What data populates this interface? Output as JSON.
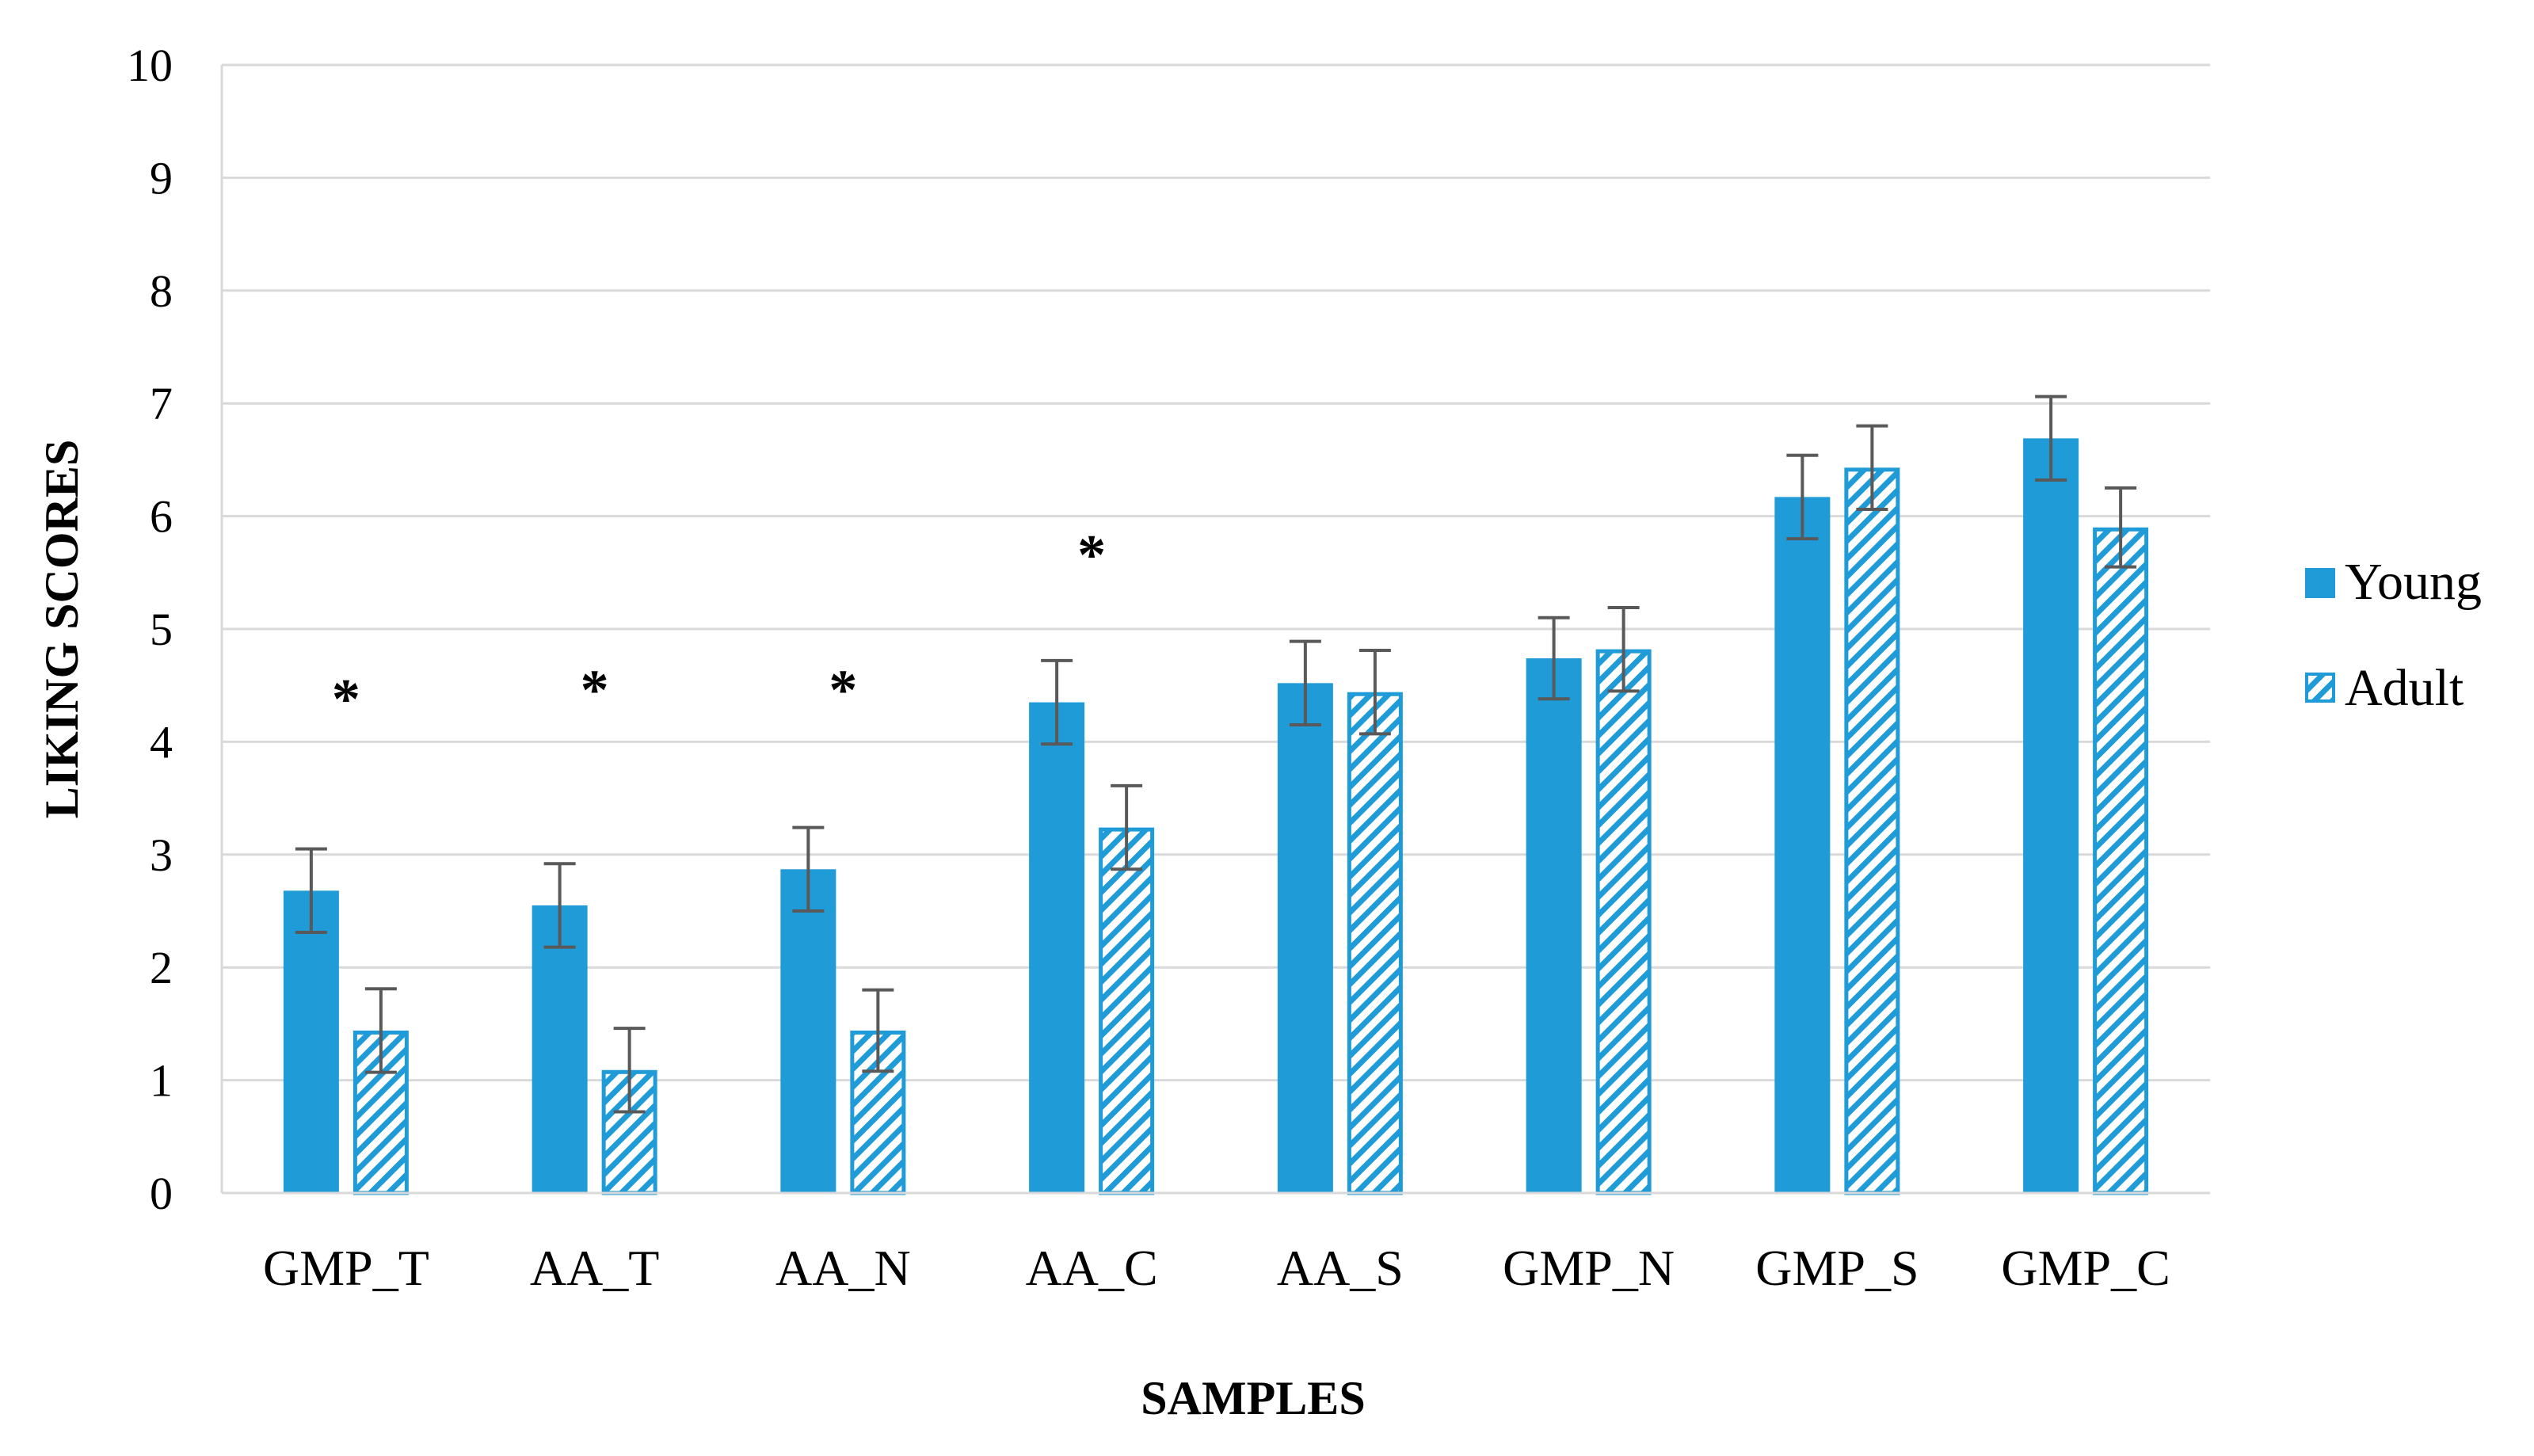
{
  "chart_data": {
    "type": "bar",
    "title": "",
    "xlabel": "SAMPLES",
    "ylabel": "LIKING SCORES",
    "ylim": [
      0,
      10
    ],
    "yticks": [
      0,
      1,
      2,
      3,
      4,
      5,
      6,
      7,
      8,
      9,
      10
    ],
    "grid": true,
    "legend_position": "right",
    "categories": [
      "GMP_T",
      "AA_T",
      "AA_N",
      "AA_C",
      "AA_S",
      "GMP_N",
      "GMP_S",
      "GMP_C"
    ],
    "series": [
      {
        "name": "Young",
        "color": "#1F9BD7",
        "pattern": "solid",
        "values": [
          2.68,
          2.55,
          2.87,
          4.35,
          4.52,
          4.74,
          6.17,
          6.69
        ],
        "errors": [
          0.37,
          0.37,
          0.37,
          0.37,
          0.37,
          0.36,
          0.37,
          0.37
        ]
      },
      {
        "name": "Adult",
        "color": "#1F9BD7",
        "pattern": "hatched",
        "values": [
          1.44,
          1.09,
          1.44,
          3.24,
          4.44,
          4.82,
          6.43,
          5.9
        ],
        "errors": [
          0.37,
          0.37,
          0.36,
          0.37,
          0.37,
          0.37,
          0.37,
          0.35
        ]
      }
    ],
    "significance_marker": "*",
    "significance_markers": [
      {
        "category": "GMP_T",
        "label": "*",
        "y": 4.42
      },
      {
        "category": "AA_T",
        "label": "*",
        "y": 4.5
      },
      {
        "category": "AA_N",
        "label": "*",
        "y": 4.5
      },
      {
        "category": "AA_C",
        "label": "*",
        "y": 5.7
      }
    ]
  }
}
